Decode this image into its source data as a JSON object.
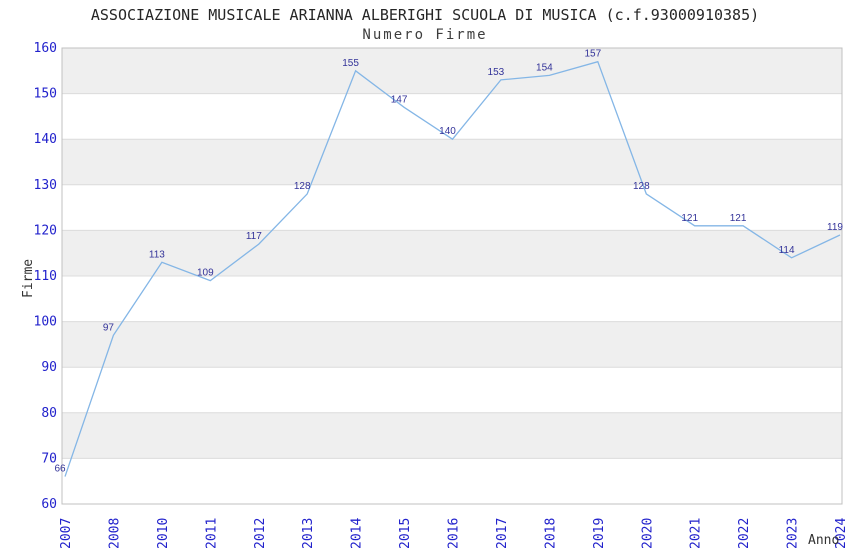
{
  "chart_data": {
    "type": "line",
    "title": "ASSOCIAZIONE MUSICALE ARIANNA ALBERIGHI SCUOLA DI MUSICA (c.f.93000910385)",
    "subtitle": "Numero Firme",
    "xlabel": "Anno",
    "ylabel": "Firme",
    "categories": [
      "2007",
      "2008",
      "2010",
      "2011",
      "2012",
      "2013",
      "2014",
      "2015",
      "2016",
      "2017",
      "2018",
      "2019",
      "2020",
      "2021",
      "2022",
      "2023",
      "2024"
    ],
    "values": [
      66,
      97,
      113,
      109,
      117,
      128,
      155,
      147,
      140,
      153,
      154,
      157,
      128,
      121,
      121,
      114,
      119
    ],
    "ylim": [
      60,
      160
    ],
    "ytick_step": 10,
    "yticks": [
      60,
      70,
      80,
      90,
      100,
      110,
      120,
      130,
      140,
      150,
      160
    ],
    "grid": "horizontal-bands-alternating",
    "legend": "none",
    "markers": "none",
    "colors": {
      "line": "#84b6e6",
      "tick_label": "#2222cc",
      "data_label": "#333399",
      "band_gray": "#efefef",
      "band_white": "#ffffff",
      "plot_border": "#c0c0c0",
      "gridline": "#dcdcdc",
      "title": "#262626",
      "subtitle": "#3d3d3d",
      "axis_title": "#333333"
    }
  }
}
